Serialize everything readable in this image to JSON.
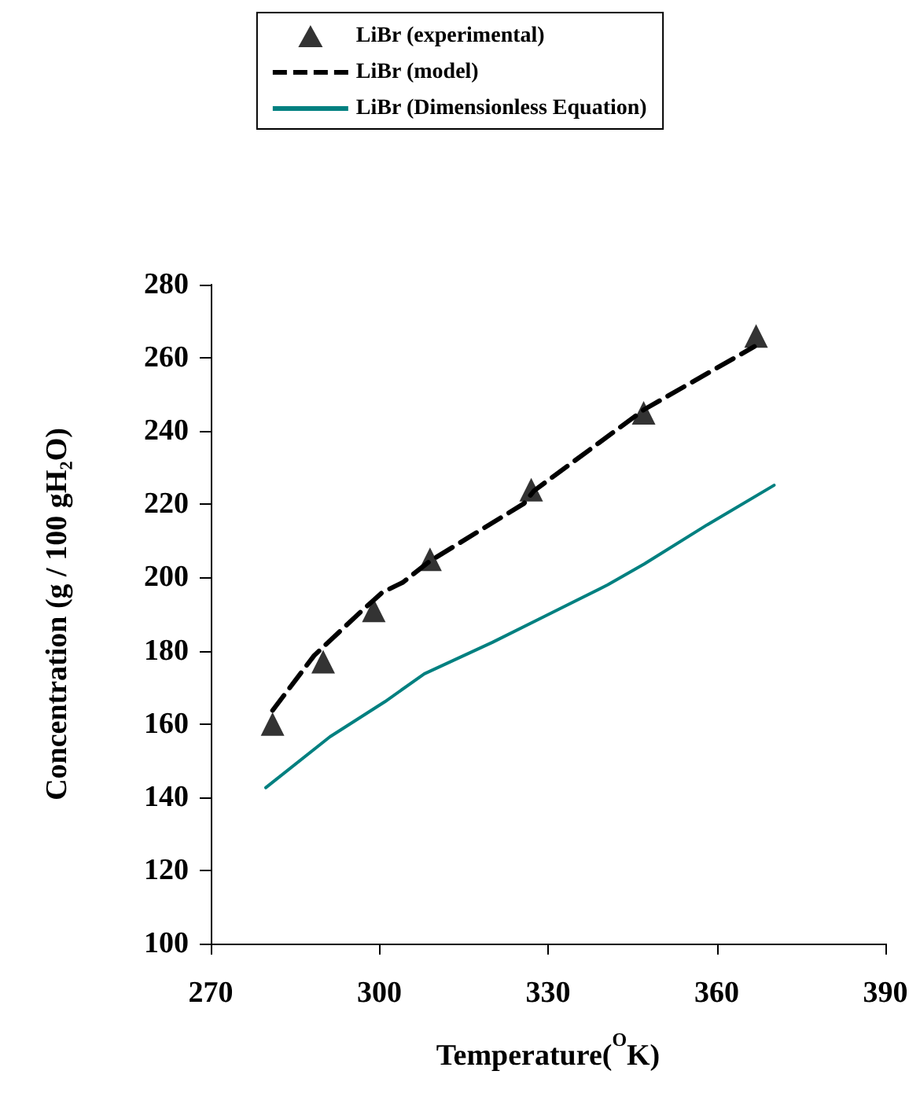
{
  "chart_data": {
    "type": "line",
    "xlabel": "Temperature($^{O}$K)",
    "ylabel": "Concentration (g / 100 gH₂O)",
    "xlim": [
      270,
      390
    ],
    "xticks": [
      270,
      300,
      330,
      360,
      390
    ],
    "ylim": [
      100,
      280
    ],
    "yticks": [
      100,
      120,
      140,
      160,
      180,
      200,
      220,
      240,
      260,
      280
    ],
    "grid": false,
    "legend": "top",
    "series": [
      {
        "name": "LiBr (experimental)",
        "type": "scatter",
        "marker": "triangle",
        "color": "#000000",
        "x": [
          281,
          290,
          299,
          309,
          327,
          347,
          367
        ],
        "values": [
          160,
          177,
          191,
          205,
          224,
          245,
          266
        ]
      },
      {
        "name": "LiBr (model)",
        "line_style": "dashed",
        "color": "#000000",
        "x": [
          281,
          288.4,
          296.8,
          300.5,
          304.2,
          308.9,
          325.7,
          327.5,
          347.1,
          366.7
        ],
        "values": [
          163.7,
          178.7,
          190.8,
          195.9,
          198.7,
          204.4,
          220.2,
          223.7,
          245.9,
          263.1
        ]
      },
      {
        "name": "LiBr (Dimensionless Equation)",
        "line_style": "solid",
        "color": "#008080",
        "x": [
          279.8,
          291.2,
          301,
          308,
          320.1,
          329.4,
          340.6,
          347.1,
          358.3,
          370.2
        ],
        "values": [
          142.6,
          156.5,
          166.1,
          173.7,
          182.3,
          189.4,
          198,
          203.7,
          214.4,
          225.2
        ]
      }
    ]
  }
}
